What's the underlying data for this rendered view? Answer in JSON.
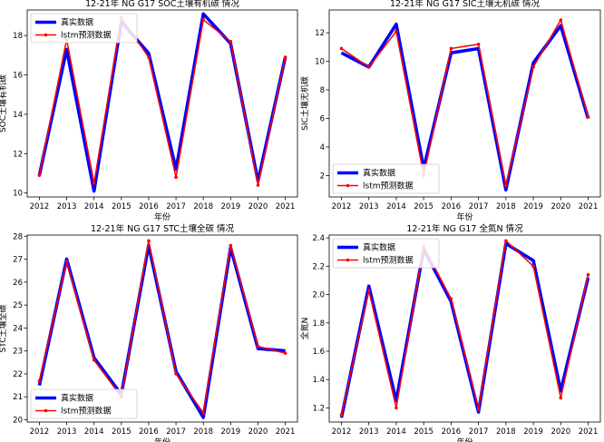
{
  "chart_data": [
    {
      "type": "line",
      "title": "12-21年 NG G17 SOC土壤有机碳 情况",
      "xlabel": "年份",
      "ylabel": "SOC土壤有机碳",
      "x": [
        "2012",
        "2013",
        "2014",
        "2015",
        "2016",
        "2017",
        "2018",
        "2019",
        "2020",
        "2021"
      ],
      "ylim": [
        9.8,
        19.3
      ],
      "yticks": [
        "10",
        "12",
        "14",
        "16",
        "18"
      ],
      "ytick_values": [
        10,
        12,
        14,
        16,
        18
      ],
      "legend": "top-left",
      "series": [
        {
          "name": "真实数据",
          "color": "#0000ff",
          "values": [
            10.9,
            17.3,
            10.1,
            18.7,
            17.1,
            11.2,
            19.1,
            17.6,
            10.6,
            16.9
          ]
        },
        {
          "name": "lstm预测数据",
          "color": "#ff0000",
          "values": [
            10.9,
            17.8,
            10.5,
            18.9,
            16.9,
            10.8,
            18.8,
            17.7,
            10.4,
            16.9
          ]
        }
      ]
    },
    {
      "type": "line",
      "title": "12-21年 NG G17 SIC土壤无机碳 情况",
      "xlabel": "年份",
      "ylabel": "SIC土壤无机碳",
      "x": [
        "2012",
        "2013",
        "2014",
        "2015",
        "2016",
        "2017",
        "2018",
        "2019",
        "2020",
        "2021"
      ],
      "ylim": [
        0.5,
        13.6
      ],
      "yticks": [
        "2",
        "4",
        "6",
        "8",
        "10",
        "12"
      ],
      "ytick_values": [
        2,
        4,
        6,
        8,
        10,
        12
      ],
      "legend": "lower-left",
      "series": [
        {
          "name": "真实数据",
          "color": "#0000ff",
          "values": [
            10.6,
            9.6,
            12.6,
            2.5,
            10.6,
            10.9,
            1.0,
            9.9,
            12.5,
            6.0
          ]
        },
        {
          "name": "lstm预测数据",
          "color": "#ff0000",
          "values": [
            10.9,
            9.6,
            12.1,
            2.0,
            10.9,
            11.2,
            1.3,
            9.6,
            12.9,
            6.1
          ]
        }
      ]
    },
    {
      "type": "line",
      "title": "12-21年 NG G17 STC土壤全碳 情况",
      "xlabel": "年份",
      "ylabel": "STC土壤全碳",
      "x": [
        "2012",
        "2013",
        "2014",
        "2015",
        "2016",
        "2017",
        "2018",
        "2019",
        "2020",
        "2021"
      ],
      "ylim": [
        19.9,
        28.05
      ],
      "yticks": [
        "20",
        "21",
        "22",
        "23",
        "24",
        "25",
        "26",
        "27",
        "28"
      ],
      "ytick_values": [
        20,
        21,
        22,
        23,
        24,
        25,
        26,
        27,
        28
      ],
      "legend": "lower-left",
      "series": [
        {
          "name": "真实数据",
          "color": "#0000ff",
          "values": [
            21.5,
            27.0,
            22.7,
            21.1,
            27.6,
            22.1,
            20.1,
            27.5,
            23.1,
            23.0
          ]
        },
        {
          "name": "lstm预测数据",
          "color": "#ff0000",
          "values": [
            21.7,
            26.9,
            22.6,
            21.0,
            27.8,
            22.0,
            20.3,
            27.6,
            23.2,
            22.9
          ]
        }
      ]
    },
    {
      "type": "line",
      "title": "12-21年 NG G17 全氮N 情况",
      "xlabel": "年份",
      "ylabel": "全氮N",
      "x": [
        "2012",
        "2013",
        "2014",
        "2015",
        "2016",
        "2017",
        "2018",
        "2019",
        "2020",
        "2021"
      ],
      "ylim": [
        1.1,
        2.42
      ],
      "yticks": [
        "1.2",
        "1.4",
        "1.6",
        "1.8",
        "2.0",
        "2.2",
        "2.4"
      ],
      "ytick_values": [
        1.2,
        1.4,
        1.6,
        1.8,
        2.0,
        2.2,
        2.4
      ],
      "legend": "top-left",
      "series": [
        {
          "name": "真实数据",
          "color": "#0000ff",
          "values": [
            1.13,
            2.06,
            1.25,
            2.32,
            1.95,
            1.17,
            2.36,
            2.24,
            1.32,
            2.12
          ]
        },
        {
          "name": "lstm预测数据",
          "color": "#ff0000",
          "values": [
            1.15,
            2.03,
            1.2,
            2.34,
            1.97,
            1.19,
            2.38,
            2.2,
            1.27,
            2.14
          ]
        }
      ]
    }
  ]
}
